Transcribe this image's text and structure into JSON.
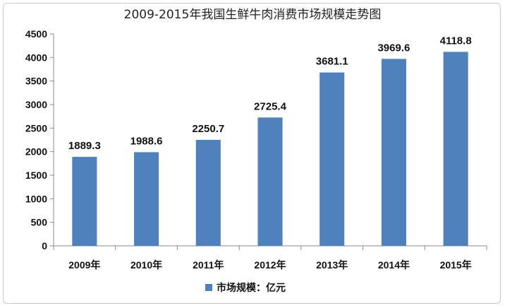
{
  "chart_data": {
    "type": "bar",
    "title": "2009-2015年我国生鲜牛肉消费市场规模走势图",
    "categories": [
      "2009年",
      "2010年",
      "2011年",
      "2012年",
      "2013年",
      "2014年",
      "2015年"
    ],
    "series": [
      {
        "name": "市场规模：亿元",
        "values": [
          1889.3,
          1988.6,
          2250.7,
          2725.4,
          3681.1,
          3969.6,
          4118.8
        ]
      }
    ],
    "data_labels": [
      "1889.3",
      "1988.6",
      "2250.7",
      "2725.4",
      "3681.1",
      "3969.6",
      "4118.8"
    ],
    "yticks": [
      "0",
      "500",
      "1000",
      "1500",
      "2000",
      "2500",
      "3000",
      "3500",
      "4000",
      "4500"
    ],
    "ylim": [
      0,
      4500
    ],
    "grid": false,
    "legend_position": "bottom",
    "colors": {
      "bar": "#4f81bd",
      "axis": "#888888",
      "text": "#111111"
    }
  }
}
